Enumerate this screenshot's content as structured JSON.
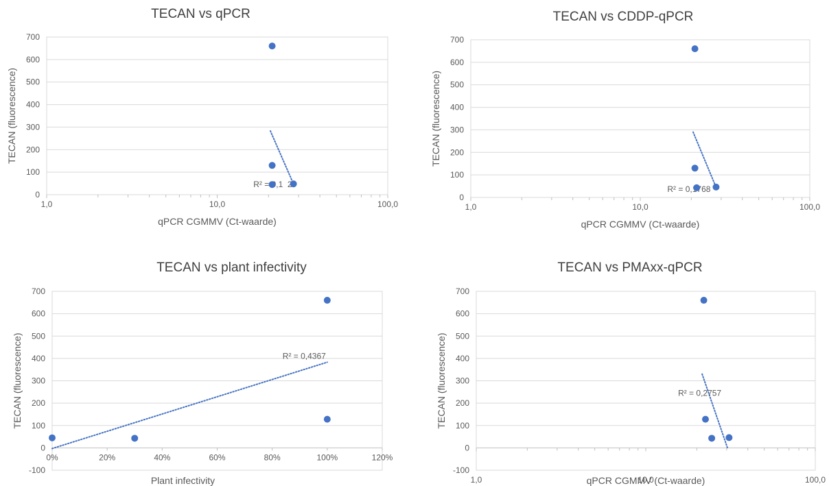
{
  "chart_data": [
    {
      "type": "scatter",
      "title": "TECAN vs qPCR",
      "xlabel": "qPCR CGMMV (Ct-waarde)",
      "ylabel": "TECAN (fluorescence)",
      "xscale": "log",
      "xlim": [
        1,
        100
      ],
      "ylim": [
        0,
        700
      ],
      "xticks": [
        "1,0",
        "10,0",
        "100,0"
      ],
      "yticks": [
        "0",
        "100",
        "200",
        "300",
        "400",
        "500",
        "600",
        "700"
      ],
      "grid": "horizontal",
      "points": [
        {
          "x": 21,
          "y": 660
        },
        {
          "x": 21,
          "y": 130
        },
        {
          "x": 21,
          "y": 45
        },
        {
          "x": 28,
          "y": 48
        }
      ],
      "trendline": {
        "x": [
          20.5,
          28
        ],
        "y": [
          283,
          48
        ],
        "style": "dotted"
      },
      "annotation": "R² = 0,1  2",
      "colors": {
        "points": "#4472c4",
        "trendline": "#4472c4",
        "grid": "#d9d9d9"
      }
    },
    {
      "type": "scatter",
      "title": "TECAN vs CDDP-qPCR",
      "xlabel": "qPCR CGMMV (Ct-waarde)",
      "ylabel": "TECAN (fluorescence)",
      "xscale": "log",
      "xlim": [
        1,
        100
      ],
      "ylim": [
        0,
        700
      ],
      "xticks": [
        "1,0",
        "10,0",
        "100,0"
      ],
      "yticks": [
        "0",
        "100",
        "200",
        "300",
        "400",
        "500",
        "600",
        "700"
      ],
      "grid": "horizontal",
      "points": [
        {
          "x": 21,
          "y": 660
        },
        {
          "x": 21,
          "y": 130
        },
        {
          "x": 21.5,
          "y": 43
        },
        {
          "x": 28,
          "y": 46
        }
      ],
      "trendline": {
        "x": [
          20.5,
          28
        ],
        "y": [
          290,
          45
        ],
        "style": "dotted"
      },
      "annotation": "R² = 0,1768",
      "colors": {
        "points": "#4472c4",
        "trendline": "#4472c4",
        "grid": "#d9d9d9"
      }
    },
    {
      "type": "scatter",
      "title": "TECAN vs plant infectivity",
      "xlabel": "Plant infectivity",
      "ylabel": "TECAN (fluorescence)",
      "xscale": "linear",
      "xlim": [
        0,
        1.2
      ],
      "ylim": [
        -100,
        700
      ],
      "xticks": [
        "0%",
        "20%",
        "40%",
        "60%",
        "80%",
        "100%",
        "120%"
      ],
      "yticks": [
        "-100",
        "0",
        "100",
        "200",
        "300",
        "400",
        "500",
        "600",
        "700"
      ],
      "grid": "horizontal",
      "points": [
        {
          "x": 0,
          "y": 45
        },
        {
          "x": 0.3,
          "y": 43
        },
        {
          "x": 1.0,
          "y": 660
        },
        {
          "x": 1.0,
          "y": 128
        }
      ],
      "trendline": {
        "x": [
          0,
          1.0
        ],
        "y": [
          -3,
          383
        ],
        "style": "dotted"
      },
      "annotation": "R² = 0,4367",
      "colors": {
        "points": "#4472c4",
        "trendline": "#4472c4",
        "grid": "#d9d9d9"
      }
    },
    {
      "type": "scatter",
      "title": "TECAN vs PMAxx-qPCR",
      "xlabel": "qPCR CGMMV (Ct-waarde)",
      "ylabel": "TECAN (fluorescence)",
      "xscale": "log",
      "xlim": [
        1,
        100
      ],
      "ylim": [
        -100,
        700
      ],
      "xticks": [
        "1,0",
        "10,0",
        "100,0"
      ],
      "yticks": [
        "-100",
        "0",
        "100",
        "200",
        "300",
        "400",
        "500",
        "600",
        "700"
      ],
      "grid": "horizontal",
      "points": [
        {
          "x": 22,
          "y": 660
        },
        {
          "x": 22.5,
          "y": 128
        },
        {
          "x": 24.5,
          "y": 43
        },
        {
          "x": 31,
          "y": 46
        }
      ],
      "trendline": {
        "x": [
          21.5,
          30.5
        ],
        "y": [
          330,
          -5
        ],
        "style": "dotted"
      },
      "annotation": "R² = 0,2757",
      "colors": {
        "points": "#4472c4",
        "trendline": "#4472c4",
        "grid": "#d9d9d9"
      }
    }
  ]
}
